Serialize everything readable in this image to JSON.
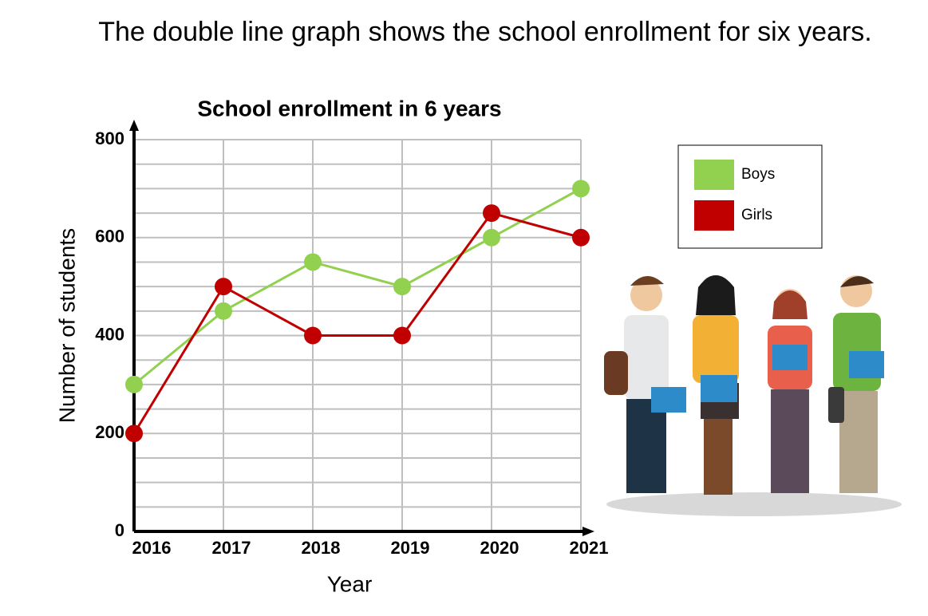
{
  "header": {
    "text": "The double line graph shows the school enrollment for six years."
  },
  "chart_data": {
    "type": "line",
    "title": "School enrollment in 6 years",
    "x_label": "Year",
    "y_label": "Number of students",
    "categories": [
      "2016",
      "2017",
      "2018",
      "2019",
      "2020",
      "2021"
    ],
    "series": [
      {
        "name": "Boys",
        "color": "#92d050",
        "values": [
          300,
          450,
          550,
          500,
          600,
          700
        ]
      },
      {
        "name": "Girls",
        "color": "#c00000",
        "values": [
          200,
          500,
          400,
          400,
          650,
          600
        ]
      }
    ],
    "ylim": [
      0,
      800
    ],
    "yticks": [
      0,
      200,
      400,
      600,
      800
    ],
    "minor_yticks": [
      50,
      100,
      150,
      250,
      300,
      350,
      450,
      500,
      550,
      650,
      700,
      750
    ],
    "grid": true,
    "legend": "right"
  }
}
